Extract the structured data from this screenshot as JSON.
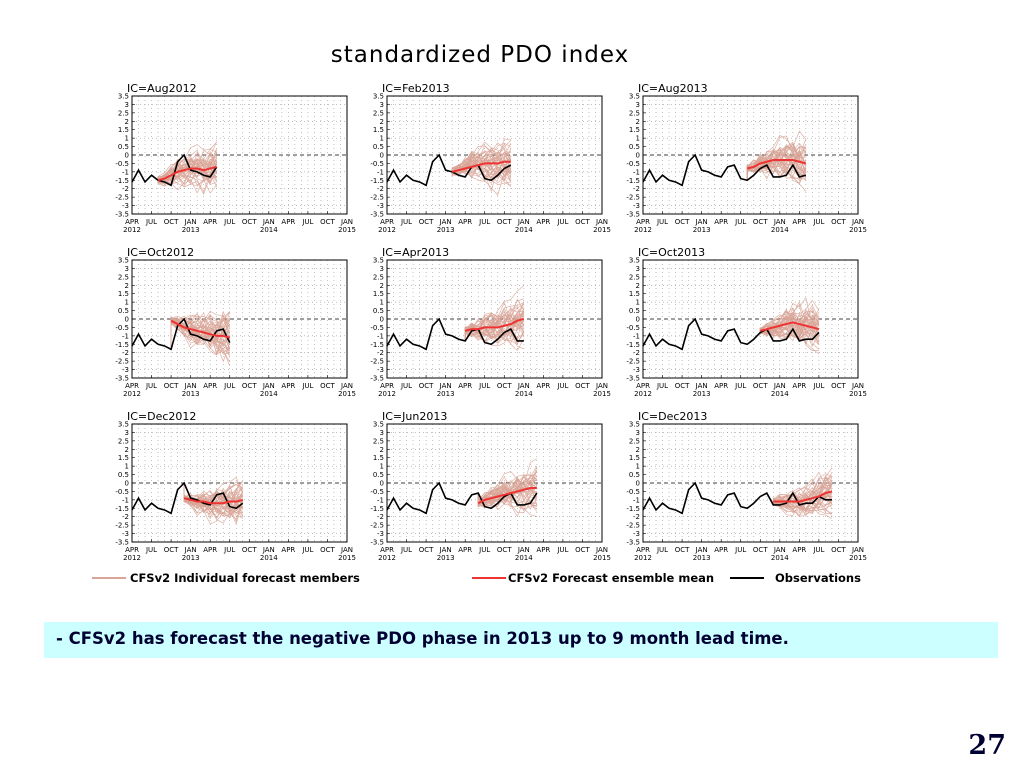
{
  "figure_title": "standardized PDO index",
  "caption": "- CFSv2 has forecast the negative PDO phase in 2013 up to 9 month lead time.",
  "slide_number": "27",
  "colors": {
    "members": "#d8a597",
    "mean": "#ee3333",
    "obs": "#000000",
    "grid": "#9a9a9a"
  },
  "legend": [
    {
      "label": "CFSv2 Individual forecast members",
      "series": "members"
    },
    {
      "label": "CFSv2 Forecast ensemble mean",
      "series": "mean"
    },
    {
      "label": "Observations",
      "series": "obs"
    }
  ],
  "chart_data": {
    "type": "line",
    "title": "standardized PDO index",
    "ylim": [
      -3.5,
      3.5
    ],
    "yticks": [
      "3.5",
      "3",
      "2.5",
      "2",
      "1.5",
      "1",
      "0.5",
      "0",
      "-0.5",
      "-1",
      "-1.5",
      "-2",
      "-2.5",
      "-3",
      "-3.5"
    ],
    "xlim": [
      0,
      33
    ],
    "xticks": [
      {
        "label": "APR",
        "year": "2012"
      },
      {
        "label": "JUL",
        "year": ""
      },
      {
        "label": "OCT",
        "year": ""
      },
      {
        "label": "JAN",
        "year": "2013"
      },
      {
        "label": "APR",
        "year": ""
      },
      {
        "label": "JUL",
        "year": ""
      },
      {
        "label": "OCT",
        "year": ""
      },
      {
        "label": "JAN",
        "year": "2014"
      },
      {
        "label": "APR",
        "year": ""
      },
      {
        "label": "JUL",
        "year": ""
      },
      {
        "label": "OCT",
        "year": ""
      },
      {
        "label": "JAN",
        "year": "2015"
      }
    ],
    "grid": true,
    "reference_line": 0,
    "observations": {
      "months": [
        0,
        1,
        2,
        3,
        4,
        5,
        6,
        7,
        8,
        9,
        10,
        11,
        12,
        13,
        14,
        15,
        16,
        17,
        18,
        19,
        20,
        21,
        22,
        23,
        24,
        25,
        26,
        27,
        28,
        29
      ],
      "values": [
        -1.6,
        -0.9,
        -1.6,
        -1.2,
        -1.5,
        -1.6,
        -1.8,
        -0.4,
        0.0,
        -0.9,
        -1.0,
        -1.2,
        -1.3,
        -0.7,
        -0.6,
        -1.4,
        -1.5,
        -1.2,
        -0.8,
        -0.6,
        -1.3,
        -1.3,
        -1.2,
        -0.6,
        -1.3,
        -1.2,
        -1.2,
        -0.8,
        -1.0,
        -1.0
      ]
    },
    "panels": [
      {
        "label": "IC=Aug2012",
        "ic_month": 4,
        "obs_end": 13,
        "mean": [
          -1.5,
          -1.4,
          -1.2,
          -1.0,
          -0.9,
          -0.8,
          -0.8,
          -0.9,
          -0.8,
          -0.7
        ],
        "spread": [
          0.3,
          0.5,
          0.7,
          0.9,
          1.0,
          1.1,
          1.2,
          1.2,
          1.3,
          1.3
        ]
      },
      {
        "label": "IC=Feb2013",
        "ic_month": 10,
        "obs_end": 19,
        "mean": [
          -1.0,
          -0.9,
          -0.8,
          -0.7,
          -0.6,
          -0.5,
          -0.5,
          -0.5,
          -0.4,
          -0.4
        ],
        "spread": [
          0.3,
          0.5,
          0.7,
          0.9,
          1.0,
          1.1,
          1.2,
          1.3,
          1.3,
          1.4
        ]
      },
      {
        "label": "IC=Aug2013",
        "ic_month": 16,
        "obs_end": 25,
        "mean": [
          -0.8,
          -0.7,
          -0.5,
          -0.4,
          -0.3,
          -0.3,
          -0.3,
          -0.3,
          -0.4,
          -0.5
        ],
        "spread": [
          0.3,
          0.5,
          0.7,
          0.9,
          1.0,
          1.1,
          1.2,
          1.3,
          1.3,
          1.4
        ]
      },
      {
        "label": "IC=Oct2012",
        "ic_month": 6,
        "obs_end": 15,
        "mean": [
          -0.1,
          -0.3,
          -0.5,
          -0.6,
          -0.7,
          -0.8,
          -0.9,
          -1.0,
          -1.0,
          -1.1
        ],
        "spread": [
          0.3,
          0.5,
          0.7,
          0.9,
          1.1,
          1.2,
          1.3,
          1.4,
          1.5,
          1.5
        ]
      },
      {
        "label": "IC=Apr2013",
        "ic_month": 12,
        "obs_end": 21,
        "mean": [
          -0.7,
          -0.6,
          -0.6,
          -0.5,
          -0.5,
          -0.5,
          -0.4,
          -0.3,
          -0.1,
          0.0
        ],
        "spread": [
          0.3,
          0.5,
          0.7,
          0.9,
          1.0,
          1.1,
          1.2,
          1.3,
          1.4,
          1.4
        ]
      },
      {
        "label": "IC=Oct2013",
        "ic_month": 18,
        "obs_end": 27,
        "mean": [
          -0.7,
          -0.6,
          -0.5,
          -0.4,
          -0.3,
          -0.2,
          -0.3,
          -0.4,
          -0.5,
          -0.6
        ],
        "spread": [
          0.3,
          0.5,
          0.7,
          0.9,
          1.0,
          1.1,
          1.2,
          1.3,
          1.3,
          1.4
        ]
      },
      {
        "label": "IC=Dec2012",
        "ic_month": 8,
        "obs_end": 17,
        "mean": [
          -0.9,
          -1.0,
          -1.1,
          -1.1,
          -1.2,
          -1.2,
          -1.2,
          -1.1,
          -1.1,
          -1.0
        ],
        "spread": [
          0.3,
          0.5,
          0.7,
          0.8,
          0.9,
          1.0,
          1.1,
          1.2,
          1.3,
          1.3
        ]
      },
      {
        "label": "IC=Jun2013",
        "ic_month": 14,
        "obs_end": 23,
        "mean": [
          -1.2,
          -1.0,
          -0.9,
          -0.8,
          -0.7,
          -0.6,
          -0.5,
          -0.4,
          -0.3,
          -0.3
        ],
        "spread": [
          0.3,
          0.5,
          0.7,
          0.9,
          1.0,
          1.1,
          1.2,
          1.3,
          1.4,
          1.4
        ]
      },
      {
        "label": "IC=Dec2013",
        "ic_month": 20,
        "obs_end": 29,
        "mean": [
          -1.1,
          -1.1,
          -1.1,
          -1.1,
          -1.1,
          -1.0,
          -0.9,
          -0.8,
          -0.6,
          -0.5
        ],
        "spread": [
          0.3,
          0.5,
          0.6,
          0.8,
          0.9,
          1.0,
          1.1,
          1.2,
          1.3,
          1.3
        ]
      }
    ]
  }
}
